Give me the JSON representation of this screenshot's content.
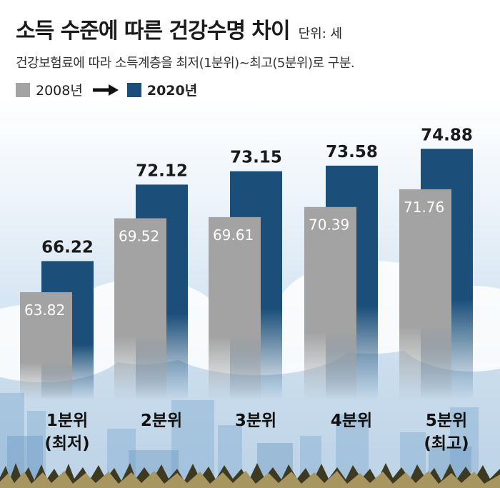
{
  "title": "소득 수준에 따른 건강수명 차이",
  "unit": "단위: 세",
  "subtitle": "건강보험료에 따라 소득계층을 최저(1분위)~최고(5분위)로 구분.",
  "colors": {
    "series_2008": "#a3a3a3",
    "series_2020": "#1b4f7a"
  },
  "legend": {
    "from": "2008년",
    "to": "2020년",
    "arrow": "right-arrow-icon"
  },
  "chart_data": {
    "type": "bar",
    "categories": [
      {
        "line1": "1분위",
        "line2": "(최저)"
      },
      {
        "line1": "2분위",
        "line2": ""
      },
      {
        "line1": "3분위",
        "line2": ""
      },
      {
        "line1": "4분위",
        "line2": ""
      },
      {
        "line1": "5분위",
        "line2": "(최고)"
      }
    ],
    "series": [
      {
        "name": "2008년",
        "values": [
          "63.82",
          "69.52",
          "69.61",
          "70.39",
          "71.76"
        ]
      },
      {
        "name": "2020년",
        "values": [
          "66.22",
          "72.12",
          "73.15",
          "73.58",
          "74.88"
        ]
      }
    ],
    "ylim": [
      0,
      80
    ],
    "grid": false,
    "legend_position": "top-left"
  }
}
